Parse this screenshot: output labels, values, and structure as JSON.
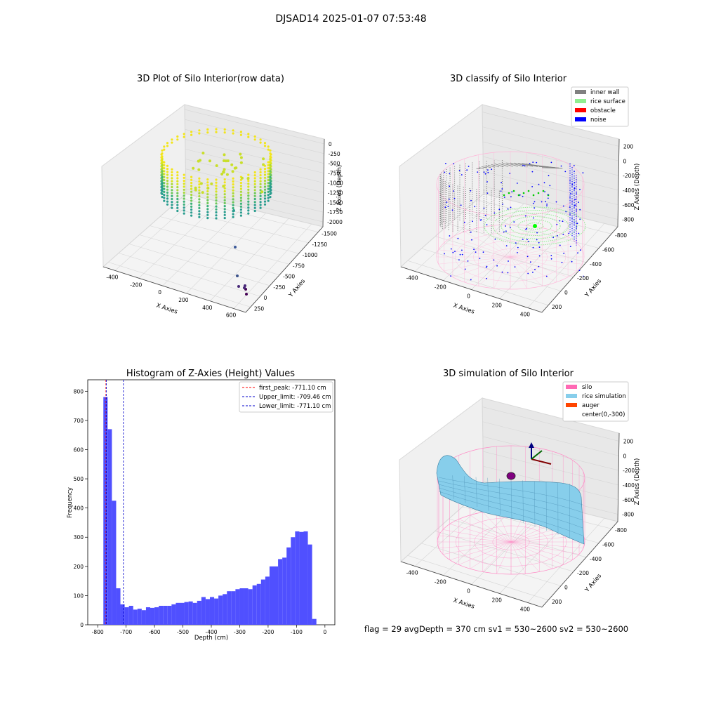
{
  "figure_title": "DJSAD14 2025-01-07 07:53:48",
  "status_line": "flag = 29  avgDepth = 370 cm  sv1 = 530~2600  sv2 = 530~2600",
  "colors": {
    "hist_bar": "#5050ff",
    "first_peak": "#ff0000",
    "upper_limit": "#0000cc",
    "lower_limit": "#0000cc",
    "inner_wall": "#808080",
    "rice_surface": "#90ee90",
    "obstacle": "#ff0000",
    "noise": "#0000ff",
    "silo": "#ff69b4",
    "rice_simulation": "#87ceeb",
    "auger": "#ff4500"
  },
  "chart_data": [
    {
      "type": "scatter3d",
      "title": "3D Plot of Silo Interior(row data)",
      "xlabel": "X Axies",
      "ylabel": "Y Axies",
      "zlabel": "Z Axies (Depth)",
      "xticks": [
        "-400",
        "-200",
        "0",
        "200",
        "400",
        "600"
      ],
      "yticks": [
        "250",
        "0",
        "-250",
        "-500",
        "-750",
        "-1000",
        "-1250",
        "-1500"
      ],
      "zticks": [
        "0",
        "-250",
        "-500",
        "-750",
        "-1000",
        "-1250",
        "-1500",
        "-1750",
        "-2000"
      ],
      "colormap": "viridis"
    },
    {
      "type": "scatter3d",
      "title": "3D classify of Silo Interior",
      "xlabel": "X Axies",
      "ylabel": "Y Axies",
      "zlabel": "Z Axies (Depth)",
      "xticks": [
        "-400",
        "-200",
        "0",
        "200",
        "400"
      ],
      "yticks": [
        "200",
        "0",
        "-200",
        "-400",
        "-600",
        "-800"
      ],
      "zticks": [
        "200",
        "0",
        "-200",
        "-400",
        "-600",
        "-800"
      ],
      "legend": [
        "inner wall",
        "rice surface",
        "obstacle",
        "noise"
      ],
      "legend_position": "top-right"
    },
    {
      "type": "bar",
      "title": "Histogram of Z-Axies (Height) Values",
      "xlabel": "Depth (cm)",
      "ylabel": "Frequency",
      "xlim": [
        -800,
        0
      ],
      "ylim": [
        0,
        820
      ],
      "xticks": [
        -800,
        -700,
        -600,
        -500,
        -400,
        -300,
        -200,
        -100,
        0
      ],
      "yticks": [
        0,
        100,
        200,
        300,
        400,
        500,
        600,
        700,
        800
      ],
      "bin_start": -780,
      "bin_width": 15,
      "values": [
        780,
        670,
        425,
        125,
        70,
        60,
        65,
        52,
        55,
        50,
        60,
        58,
        60,
        65,
        65,
        65,
        70,
        75,
        75,
        78,
        80,
        75,
        82,
        95,
        88,
        95,
        90,
        100,
        105,
        115,
        115,
        122,
        125,
        125,
        122,
        135,
        140,
        155,
        165,
        200,
        200,
        225,
        230,
        265,
        300,
        320,
        318,
        320,
        275,
        20
      ],
      "lines": [
        {
          "label": "first_peak: -771.10 cm",
          "x": -771.1,
          "style": "red-dashed"
        },
        {
          "label": "Upper_limit: -709.46 cm",
          "x": -709.46,
          "style": "blue-dashed"
        },
        {
          "label": "Lower_limit: -771.10 cm",
          "x": -771.1,
          "style": "blue-dashed"
        }
      ],
      "legend_position": "top-right"
    },
    {
      "type": "surface3d",
      "title": "3D simulation of Silo Interior",
      "xlabel": "X Axies",
      "ylabel": "Y Axies",
      "zlabel": "Z Axies (Depth)",
      "xticks": [
        "-400",
        "-200",
        "0",
        "200",
        "400"
      ],
      "yticks": [
        "200",
        "0",
        "-200",
        "-400",
        "-600",
        "-800"
      ],
      "zticks": [
        "200",
        "0",
        "-200",
        "-400",
        "-600",
        "-800"
      ],
      "legend": [
        "silo",
        "rice simulation",
        "auger",
        "center(0,-300)"
      ],
      "legend_position": "top-right"
    }
  ]
}
